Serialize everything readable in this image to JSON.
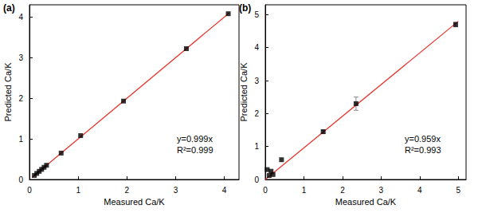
{
  "chart_data": [
    {
      "type": "scatter",
      "title": "(a)",
      "xlabel": "Measured Ca/K",
      "ylabel": "Predicted Ca/K",
      "xlim": [
        0,
        4.3
      ],
      "ylim": [
        0,
        4.3
      ],
      "xticks": [
        0,
        1,
        2,
        3,
        4
      ],
      "yticks": [
        0,
        1,
        2,
        3,
        4
      ],
      "grid": false,
      "annotations": [
        "y=0.999x",
        "R²=0.999"
      ],
      "series": [
        {
          "type": "scatter",
          "marker": "square",
          "color": "#000000",
          "x": [
            0.1,
            0.15,
            0.2,
            0.25,
            0.3,
            0.35,
            0.65,
            1.05,
            1.93,
            3.22,
            4.08
          ],
          "values": [
            0.1,
            0.15,
            0.2,
            0.25,
            0.3,
            0.35,
            0.65,
            1.08,
            1.93,
            3.22,
            4.08
          ]
        },
        {
          "type": "line",
          "line_style": "solid",
          "color": "#e8332a",
          "x": [
            0.05,
            4.1
          ],
          "values": [
            0.05,
            4.1
          ]
        }
      ]
    },
    {
      "type": "scatter",
      "title": "(b)",
      "xlabel": "Measured Ca/K",
      "ylabel": "Predicted Ca/K",
      "xlim": [
        0,
        5.2
      ],
      "ylim": [
        0,
        5.3
      ],
      "xticks": [
        0,
        1,
        2,
        3,
        4,
        5
      ],
      "yticks": [
        0,
        1,
        2,
        3,
        4,
        5
      ],
      "grid": false,
      "annotations": [
        "y=0.959x",
        "R²=0.993"
      ],
      "series": [
        {
          "type": "scatter",
          "marker": "square",
          "color": "#000000",
          "x": [
            0.05,
            0.1,
            0.15,
            0.2,
            0.42,
            1.5,
            2.35,
            4.93
          ],
          "values": [
            0.3,
            0.12,
            0.25,
            0.15,
            0.6,
            1.45,
            2.3,
            4.7
          ],
          "errors": [
            null,
            null,
            null,
            null,
            null,
            0.05,
            0.2,
            0.07
          ]
        },
        {
          "type": "line",
          "line_style": "solid",
          "color": "#e8332a",
          "x": [
            0,
            5
          ],
          "values": [
            0,
            4.8
          ]
        }
      ]
    }
  ]
}
